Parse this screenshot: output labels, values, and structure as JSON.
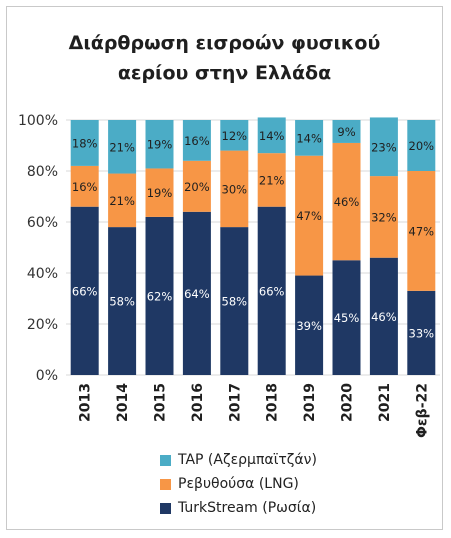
{
  "colors": {
    "tap": "#4bacc6",
    "lng": "#f79646",
    "turkstream": "#1f3864",
    "grid": "#d9d9d9",
    "axis_text": "#333333"
  },
  "chart_data": {
    "type": "bar",
    "stacked": true,
    "title_line1": "Διάρθρωση εισροών φυσικού",
    "title_line2": "αερίου στην Ελλάδα",
    "categories": [
      "2013",
      "2014",
      "2015",
      "2016",
      "2017",
      "2018",
      "2019",
      "2020",
      "2021",
      "Φεβ-22"
    ],
    "series": [
      {
        "name": "TurkStream (Ρωσία)",
        "key": "turkstream",
        "values": [
          66,
          58,
          62,
          64,
          58,
          66,
          39,
          45,
          46,
          33
        ],
        "labels": [
          "66%",
          "58%",
          "62%",
          "64%",
          "58%",
          "66%",
          "39%",
          "45%",
          "46%",
          "33%"
        ]
      },
      {
        "name": "Ρεβυθούσα (LNG)",
        "key": "lng",
        "values": [
          16,
          21,
          19,
          20,
          30,
          21,
          47,
          46,
          32,
          47
        ],
        "labels": [
          "16%",
          "21%",
          "19%",
          "20%",
          "30%",
          "21%",
          "47%",
          "46%",
          "32%",
          "47%"
        ]
      },
      {
        "name": "TAP (Αζερμπαϊτζάν)",
        "key": "tap",
        "values": [
          18,
          21,
          19,
          16,
          12,
          14,
          14,
          9,
          23,
          20
        ],
        "labels": [
          "18%",
          "21%",
          "19%",
          "16%",
          "12%",
          "14%",
          "14%",
          "9%",
          "23%",
          "20%"
        ]
      }
    ],
    "y_ticks": [
      "0%",
      "20%",
      "40%",
      "60%",
      "80%",
      "100%"
    ],
    "ylim": [
      0,
      100
    ],
    "grid": true,
    "legend_position": "bottom"
  },
  "legend": [
    {
      "label": "TAP (Αζερμπαϊτζάν)",
      "color": "#4bacc6"
    },
    {
      "label": "Ρεβυθούσα (LNG)",
      "color": "#f79646"
    },
    {
      "label": "TurkStream (Ρωσία)",
      "color": "#1f3864"
    }
  ]
}
